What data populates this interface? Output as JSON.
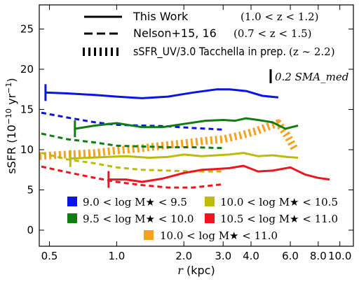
{
  "chart_data": {
    "type": "line",
    "xlabel": "r (kpc)",
    "ylabel": "sSFR (10⁻¹⁰ yr⁻¹)",
    "xscale": "log",
    "xlim": [
      0.45,
      11.5
    ],
    "ylim": [
      -2,
      28
    ],
    "x_ticks": [
      0.5,
      1.0,
      2.0,
      3.0,
      4.0,
      6.0,
      8.0,
      10.0
    ],
    "x_tick_labels": [
      "0.5",
      "1.0",
      "2.0",
      "3.0",
      "4.0",
      "6.0",
      "8.0",
      "10.0"
    ],
    "y_ticks": [
      0,
      5,
      10,
      15,
      20,
      25
    ],
    "y_tick_labels": [
      "0",
      "5",
      "10",
      "15",
      "20",
      "25"
    ],
    "grid": false,
    "style_legend": {
      "placement": "top-center",
      "entries": [
        {
          "style": "solid",
          "label": "This Work",
          "range": "(1.0 < z < 1.2)"
        },
        {
          "style": "dashed",
          "label": "Nelson+15, 16",
          "range": "(0.7 < z < 1.5)"
        },
        {
          "style": "thick-dotted",
          "label": "sSFR_UV/3.0 Tacchella in prep.",
          "range": "(z ∼ 2.2)"
        }
      ]
    },
    "scale_bar_label": "0.2 SMA_med",
    "mass_legend": {
      "placement": "lower-center",
      "entries": [
        {
          "label": "9.0 < log M★ < 9.5",
          "color": "#0a14e6"
        },
        {
          "label": "10.0 < log M★ < 10.5",
          "color": "#bcbc0f"
        },
        {
          "label": "9.5 < log M★ < 10.0",
          "color": "#0f7d0f"
        },
        {
          "label": "10.5 < log M★ < 11.0",
          "color": "#f0141e"
        },
        {
          "label": "10.0 < log M★ < 11.0",
          "color": "#f5a21e"
        }
      ]
    },
    "series": [
      {
        "group": "this_work",
        "mass_bin": "9.0-9.5",
        "color": "#0a14e6",
        "x": [
          0.48,
          0.6,
          0.8,
          1.0,
          1.3,
          1.7,
          2.2,
          2.8,
          3.2,
          3.8,
          4.5,
          5.3
        ],
        "y": [
          17.1,
          17.0,
          16.8,
          16.6,
          16.4,
          16.6,
          17.1,
          17.5,
          17.5,
          17.3,
          16.7,
          16.5
        ]
      },
      {
        "group": "this_work",
        "mass_bin": "9.5-10.0",
        "color": "#0f7d0f",
        "x": [
          0.65,
          0.8,
          1.0,
          1.3,
          1.6,
          2.0,
          2.5,
          3.0,
          3.4,
          3.8,
          4.3,
          5.0,
          5.7,
          6.5
        ],
        "y": [
          12.6,
          13.0,
          13.3,
          12.8,
          12.8,
          13.2,
          13.6,
          13.7,
          13.6,
          13.9,
          13.7,
          13.4,
          12.6,
          13.0
        ]
      },
      {
        "group": "this_work",
        "mass_bin": "10.0-10.5",
        "color": "#bcbc0f",
        "x": [
          0.62,
          0.75,
          0.9,
          1.1,
          1.4,
          1.7,
          2.0,
          2.4,
          2.8,
          3.2,
          3.7,
          4.3,
          5.0,
          5.8,
          6.5
        ],
        "y": [
          8.9,
          9.0,
          9.1,
          9.2,
          9.0,
          9.1,
          9.4,
          9.2,
          9.3,
          9.4,
          9.6,
          9.2,
          9.3,
          9.1,
          9.0
        ]
      },
      {
        "group": "this_work",
        "mass_bin": "10.5-11.0",
        "color": "#f0141e",
        "x": [
          0.92,
          1.1,
          1.3,
          1.6,
          2.0,
          2.4,
          2.8,
          3.2,
          3.7,
          4.3,
          5.0,
          6.0,
          7.0,
          8.0,
          9.0
        ],
        "y": [
          6.3,
          6.3,
          6.0,
          6.4,
          7.1,
          7.5,
          7.6,
          7.7,
          8.0,
          7.3,
          7.4,
          7.8,
          6.9,
          6.5,
          6.3
        ]
      },
      {
        "group": "nelson",
        "mass_bin": "9.0-9.5",
        "color": "#0a14e6",
        "x": [
          0.46,
          0.6,
          0.8,
          1.0,
          1.3,
          1.7,
          2.2,
          3.0
        ],
        "y": [
          14.6,
          14.0,
          13.4,
          13.1,
          13.0,
          12.9,
          12.7,
          12.5
        ]
      },
      {
        "group": "nelson",
        "mass_bin": "9.5-10.0",
        "color": "#0f7d0f",
        "x": [
          0.46,
          0.6,
          0.8,
          1.0,
          1.3,
          1.7,
          2.2,
          3.0
        ],
        "y": [
          12.0,
          11.3,
          10.9,
          10.5,
          10.4,
          10.3,
          10.3,
          10.2
        ]
      },
      {
        "group": "nelson",
        "mass_bin": "10.0-10.5",
        "color": "#bcbc0f",
        "x": [
          0.46,
          0.6,
          0.8,
          1.0,
          1.3,
          1.7,
          2.2,
          3.0
        ],
        "y": [
          9.6,
          8.8,
          8.3,
          7.8,
          7.5,
          7.4,
          7.3,
          7.3
        ]
      },
      {
        "group": "nelson",
        "mass_bin": "10.5-11.0",
        "color": "#f0141e",
        "x": [
          0.46,
          0.6,
          0.8,
          1.0,
          1.3,
          1.7,
          2.2,
          3.0
        ],
        "y": [
          7.9,
          7.2,
          6.5,
          6.0,
          5.6,
          5.3,
          5.3,
          5.7
        ]
      },
      {
        "group": "tacchella",
        "mass_bin": "10.0-11.0",
        "color": "#f5a21e",
        "x": [
          0.45,
          0.6,
          0.8,
          1.0,
          1.3,
          1.6,
          2.0,
          2.5,
          3.0,
          3.6,
          4.2,
          4.8,
          5.3,
          5.8,
          6.3
        ],
        "y": [
          9.2,
          9.4,
          9.6,
          9.9,
          10.2,
          10.5,
          10.8,
          11.1,
          11.3,
          11.8,
          12.3,
          12.9,
          13.3,
          11.8,
          10.0
        ]
      }
    ]
  }
}
